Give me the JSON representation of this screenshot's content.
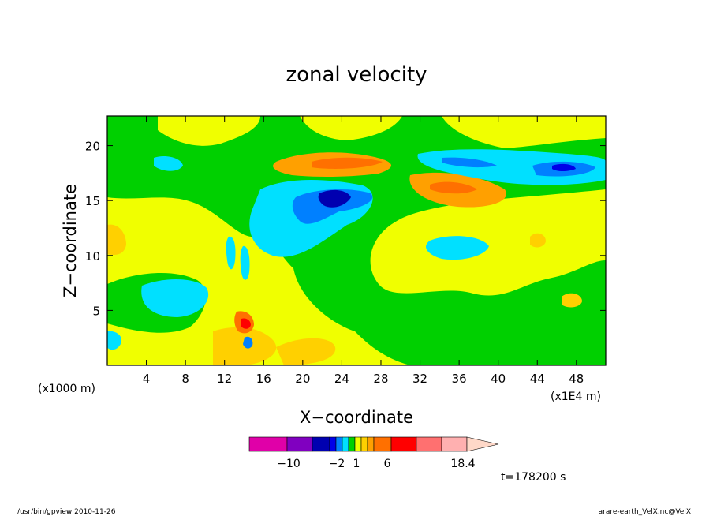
{
  "chart_data": {
    "type": "heatmap",
    "title": "zonal velocity",
    "xlabel": "X−coordinate",
    "ylabel": "Z−coordinate",
    "x_unit": "(x1E4 m)",
    "y_unit": "(x1000 m)",
    "x_ticks": [
      "4",
      "8",
      "12",
      "16",
      "20",
      "24",
      "28",
      "32",
      "36",
      "40",
      "44",
      "48"
    ],
    "y_ticks": [
      "5",
      "10",
      "15",
      "20"
    ],
    "x_range": [
      0,
      51
    ],
    "y_range": [
      0,
      22.7
    ],
    "colorbar": {
      "colors": [
        "#e000a8",
        "#8000c0",
        "#0000b0",
        "#0000e8",
        "#0080ff",
        "#00e0ff",
        "#00d000",
        "#f0ff00",
        "#ffd000",
        "#ffa000",
        "#ff7000",
        "#ff0000",
        "#ff7070",
        "#ffb0b0"
      ],
      "tick_labels": [
        "−10",
        "−2",
        "1",
        "6",
        "18.4"
      ]
    },
    "time_label": "t=178200  s"
  },
  "footer": {
    "left": "/usr/bin/gpview   2010-11-26",
    "right": "arare-earth_VelX.nc@VelX"
  }
}
